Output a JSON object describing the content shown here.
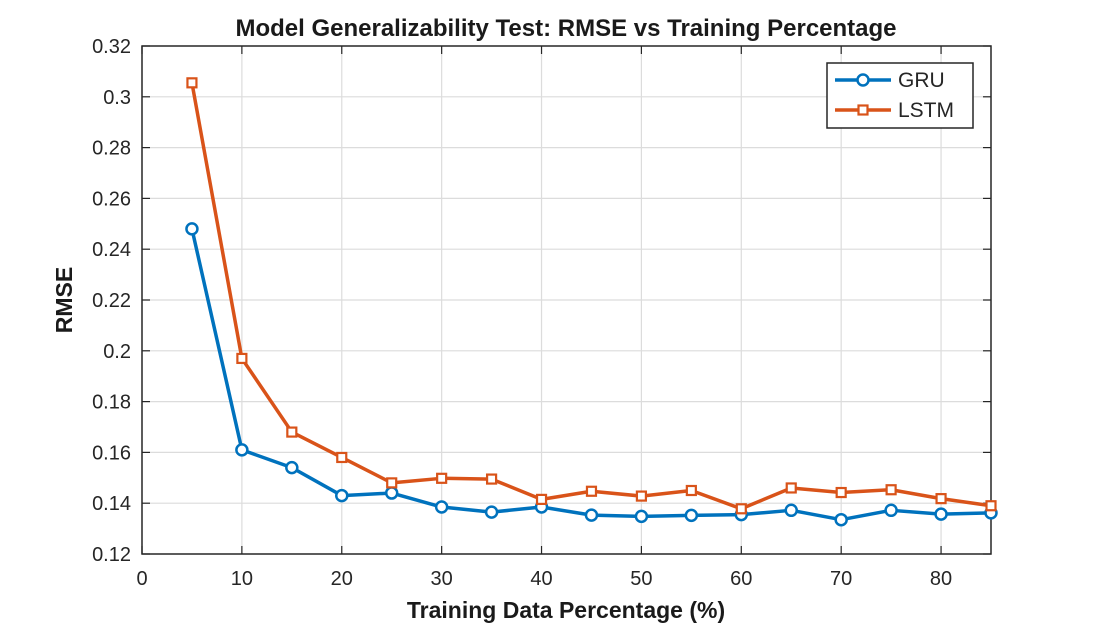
{
  "chart_data": {
    "type": "line",
    "title": "Model Generalizability Test: RMSE vs Training Percentage",
    "xlabel": "Training Data Percentage (%)",
    "ylabel": "RMSE",
    "xlim": [
      0,
      85
    ],
    "ylim": [
      0.12,
      0.32
    ],
    "xticks": [
      0,
      10,
      20,
      30,
      40,
      50,
      60,
      70,
      80
    ],
    "xtick_labels": [
      "0",
      "10",
      "20",
      "30",
      "40",
      "50",
      "60",
      "70",
      "80"
    ],
    "yticks": [
      0.12,
      0.14,
      0.16,
      0.18,
      0.2,
      0.22,
      0.24,
      0.26,
      0.28,
      0.3,
      0.32
    ],
    "ytick_labels": [
      "0.12",
      "0.14",
      "0.16",
      "0.18",
      "0.2",
      "0.22",
      "0.24",
      "0.26",
      "0.28",
      "0.3",
      "0.32"
    ],
    "grid": true,
    "legend_position": "top-right",
    "x": [
      5,
      10,
      15,
      20,
      25,
      30,
      35,
      40,
      45,
      50,
      55,
      60,
      65,
      70,
      75,
      80,
      85
    ],
    "series": [
      {
        "name": "GRU",
        "color": "#0072BD",
        "marker": "circle",
        "values": [
          0.248,
          0.161,
          0.154,
          0.143,
          0.144,
          0.1385,
          0.1365,
          0.1385,
          0.1353,
          0.1348,
          0.1352,
          0.1355,
          0.1372,
          0.1335,
          0.1372,
          0.1357,
          0.1362
        ]
      },
      {
        "name": "LSTM",
        "color": "#D95319",
        "marker": "square",
        "values": [
          0.3055,
          0.197,
          0.168,
          0.158,
          0.148,
          0.1498,
          0.1495,
          0.1415,
          0.1447,
          0.1428,
          0.145,
          0.1378,
          0.146,
          0.1442,
          0.1453,
          0.1418,
          0.139
        ]
      }
    ]
  }
}
